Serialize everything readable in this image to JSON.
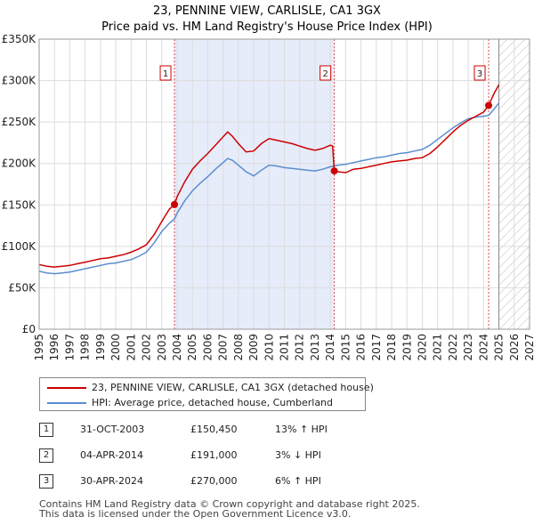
{
  "chart_data": {
    "type": "line",
    "title": "23, PENNINE VIEW, CARLISLE, CA1 3GX",
    "subtitle": "Price paid vs. HM Land Registry's House Price Index (HPI)",
    "xlim": [
      1995,
      2027
    ],
    "ylim": [
      0,
      350000
    ],
    "y_ticks": [
      {
        "value": 0,
        "label": "£0"
      },
      {
        "value": 50000,
        "label": "£50K"
      },
      {
        "value": 100000,
        "label": "£100K"
      },
      {
        "value": 150000,
        "label": "£150K"
      },
      {
        "value": 200000,
        "label": "£200K"
      },
      {
        "value": 250000,
        "label": "£250K"
      },
      {
        "value": 300000,
        "label": "£300K"
      },
      {
        "value": 350000,
        "label": "£350K"
      }
    ],
    "x_ticks": [
      "1995",
      "1996",
      "1997",
      "1998",
      "1999",
      "2000",
      "2001",
      "2002",
      "2003",
      "2004",
      "2005",
      "2006",
      "2007",
      "2008",
      "2009",
      "2010",
      "2011",
      "2012",
      "2013",
      "2014",
      "2015",
      "2016",
      "2017",
      "2018",
      "2019",
      "2020",
      "2021",
      "2022",
      "2023",
      "2024",
      "2025",
      "2026",
      "2027"
    ],
    "grid": true,
    "shaded_range": [
      2003.83,
      2014.26
    ],
    "forecast_from": 2025.0,
    "series": [
      {
        "name": "23, PENNINE VIEW, CARLISLE, CA1 3GX (detached house)",
        "color": "#cc0000",
        "points": [
          [
            1995.0,
            78000
          ],
          [
            1995.5,
            76000
          ],
          [
            1996.0,
            75000
          ],
          [
            1996.5,
            76000
          ],
          [
            1997.0,
            77000
          ],
          [
            1997.5,
            79000
          ],
          [
            1998.0,
            81000
          ],
          [
            1998.5,
            83000
          ],
          [
            1999.0,
            85000
          ],
          [
            1999.5,
            86000
          ],
          [
            2000.0,
            88000
          ],
          [
            2000.5,
            90000
          ],
          [
            2001.0,
            93000
          ],
          [
            2001.5,
            97000
          ],
          [
            2002.0,
            102000
          ],
          [
            2002.5,
            114000
          ],
          [
            2003.0,
            130000
          ],
          [
            2003.5,
            145000
          ],
          [
            2003.83,
            150450
          ],
          [
            2004.0,
            160000
          ],
          [
            2004.5,
            178000
          ],
          [
            2005.0,
            193000
          ],
          [
            2005.5,
            203000
          ],
          [
            2006.0,
            212000
          ],
          [
            2006.5,
            222000
          ],
          [
            2007.0,
            232000
          ],
          [
            2007.3,
            238000
          ],
          [
            2007.6,
            233000
          ],
          [
            2008.0,
            224000
          ],
          [
            2008.5,
            214000
          ],
          [
            2009.0,
            215000
          ],
          [
            2009.5,
            224000
          ],
          [
            2010.0,
            230000
          ],
          [
            2010.5,
            228000
          ],
          [
            2011.0,
            226000
          ],
          [
            2011.5,
            224000
          ],
          [
            2012.0,
            221000
          ],
          [
            2012.5,
            218000
          ],
          [
            2013.0,
            216000
          ],
          [
            2013.5,
            218000
          ],
          [
            2014.0,
            222000
          ],
          [
            2014.15,
            221000
          ],
          [
            2014.26,
            191000
          ],
          [
            2014.5,
            190000
          ],
          [
            2015.0,
            189000
          ],
          [
            2015.5,
            193000
          ],
          [
            2016.0,
            194000
          ],
          [
            2016.5,
            196000
          ],
          [
            2017.0,
            198000
          ],
          [
            2017.5,
            200000
          ],
          [
            2018.0,
            202000
          ],
          [
            2018.5,
            203000
          ],
          [
            2019.0,
            204000
          ],
          [
            2019.5,
            206000
          ],
          [
            2020.0,
            207000
          ],
          [
            2020.5,
            212000
          ],
          [
            2021.0,
            220000
          ],
          [
            2021.5,
            229000
          ],
          [
            2022.0,
            238000
          ],
          [
            2022.5,
            246000
          ],
          [
            2023.0,
            252000
          ],
          [
            2023.5,
            257000
          ],
          [
            2024.0,
            262000
          ],
          [
            2024.33,
            270000
          ],
          [
            2024.7,
            285000
          ],
          [
            2025.0,
            295000
          ]
        ]
      },
      {
        "name": "HPI: Average price, detached house, Cumberland",
        "color": "#5a8ecf",
        "points": [
          [
            1995.0,
            70000
          ],
          [
            1995.5,
            68000
          ],
          [
            1996.0,
            67000
          ],
          [
            1996.5,
            68000
          ],
          [
            1997.0,
            69000
          ],
          [
            1997.5,
            71000
          ],
          [
            1998.0,
            73000
          ],
          [
            1998.5,
            75000
          ],
          [
            1999.0,
            77000
          ],
          [
            1999.5,
            79000
          ],
          [
            2000.0,
            80000
          ],
          [
            2000.5,
            82000
          ],
          [
            2001.0,
            84000
          ],
          [
            2001.5,
            88000
          ],
          [
            2002.0,
            93000
          ],
          [
            2002.5,
            104000
          ],
          [
            2003.0,
            118000
          ],
          [
            2003.5,
            128000
          ],
          [
            2003.83,
            133000
          ],
          [
            2004.0,
            140000
          ],
          [
            2004.5,
            155000
          ],
          [
            2005.0,
            167000
          ],
          [
            2005.5,
            176000
          ],
          [
            2006.0,
            184000
          ],
          [
            2006.5,
            193000
          ],
          [
            2007.0,
            201000
          ],
          [
            2007.3,
            206000
          ],
          [
            2007.6,
            204000
          ],
          [
            2008.0,
            198000
          ],
          [
            2008.5,
            190000
          ],
          [
            2009.0,
            185000
          ],
          [
            2009.5,
            192000
          ],
          [
            2010.0,
            198000
          ],
          [
            2010.5,
            197000
          ],
          [
            2011.0,
            195000
          ],
          [
            2011.5,
            194000
          ],
          [
            2012.0,
            193000
          ],
          [
            2012.5,
            192000
          ],
          [
            2013.0,
            191000
          ],
          [
            2013.5,
            193000
          ],
          [
            2014.0,
            196000
          ],
          [
            2014.26,
            197000
          ],
          [
            2014.5,
            198000
          ],
          [
            2015.0,
            199000
          ],
          [
            2015.5,
            201000
          ],
          [
            2016.0,
            203000
          ],
          [
            2016.5,
            205000
          ],
          [
            2017.0,
            207000
          ],
          [
            2017.5,
            208000
          ],
          [
            2018.0,
            210000
          ],
          [
            2018.5,
            212000
          ],
          [
            2019.0,
            213000
          ],
          [
            2019.5,
            215000
          ],
          [
            2020.0,
            217000
          ],
          [
            2020.5,
            222000
          ],
          [
            2021.0,
            229000
          ],
          [
            2021.5,
            236000
          ],
          [
            2022.0,
            243000
          ],
          [
            2022.5,
            249000
          ],
          [
            2023.0,
            254000
          ],
          [
            2023.5,
            256000
          ],
          [
            2024.0,
            257000
          ],
          [
            2024.33,
            258000
          ],
          [
            2024.7,
            266000
          ],
          [
            2025.0,
            273000
          ]
        ]
      }
    ],
    "sales": [
      {
        "id": "1",
        "year": 2003.83,
        "price": 150450,
        "date": "31-OCT-2003",
        "price_label": "£150,450",
        "hpi": "13% ↑ HPI"
      },
      {
        "id": "2",
        "year": 2014.26,
        "price": 191000,
        "date": "04-APR-2014",
        "price_label": "£191,000",
        "hpi": "3% ↓ HPI"
      },
      {
        "id": "3",
        "year": 2024.33,
        "price": 270000,
        "date": "30-APR-2024",
        "price_label": "£270,000",
        "hpi": "6% ↑ HPI"
      }
    ],
    "footer": [
      "Contains HM Land Registry data © Crown copyright and database right 2025.",
      "This data is licensed under the Open Government Licence v3.0."
    ]
  }
}
